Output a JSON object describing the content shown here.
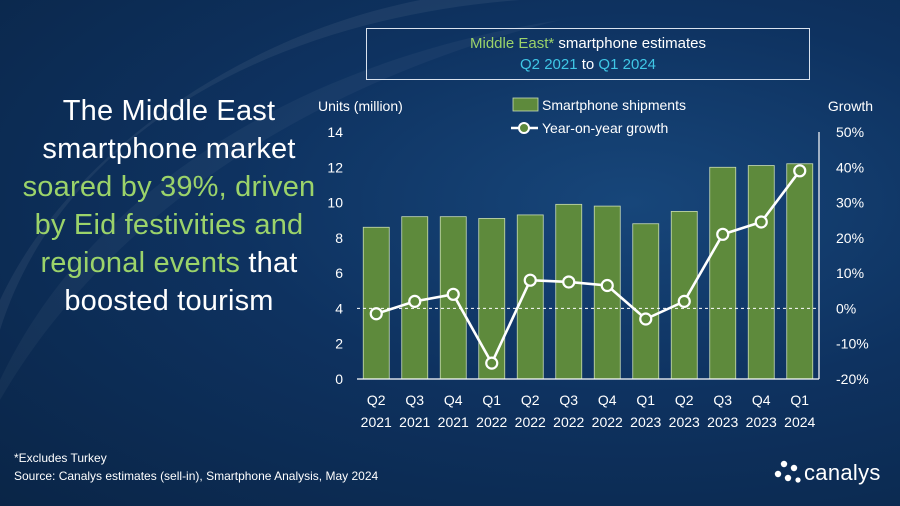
{
  "title": {
    "line1_green": "Middle East*",
    "line1_rest": " smartphone estimates",
    "line2_start": "Q2 2021",
    "line2_mid": " to ",
    "line2_end": "Q1 2024"
  },
  "headline": {
    "part1": "The Middle East smartphone market ",
    "part2_green": "soared by 39%, driven by Eid festivities and regional events",
    "part3": " that boosted tourism"
  },
  "footnote": "*Excludes Turkey",
  "source": "Source: Canalys estimates (sell-in), Smartphone Analysis, May 2024",
  "logo_text": "canalys",
  "colors": {
    "bar": "#5e8a3c",
    "bar_border": "#c9dcb4",
    "line": "#ffffff",
    "marker_fill": "#5e8a3c",
    "accent_green": "#9bd36a",
    "accent_cyan": "#3fc7e6"
  },
  "chart_data": {
    "type": "bar",
    "categories": [
      [
        "Q2",
        "2021"
      ],
      [
        "Q3",
        "2021"
      ],
      [
        "Q4",
        "2021"
      ],
      [
        "Q1",
        "2022"
      ],
      [
        "Q2",
        "2022"
      ],
      [
        "Q3",
        "2022"
      ],
      [
        "Q4",
        "2022"
      ],
      [
        "Q1",
        "2023"
      ],
      [
        "Q2",
        "2023"
      ],
      [
        "Q3",
        "2023"
      ],
      [
        "Q4",
        "2023"
      ],
      [
        "Q1",
        "2024"
      ]
    ],
    "series": [
      {
        "name": "Smartphone shipments",
        "type": "bar",
        "axis": "left",
        "values": [
          8.6,
          9.2,
          9.2,
          9.1,
          9.3,
          9.9,
          9.8,
          8.8,
          9.5,
          12.0,
          12.1,
          12.2
        ]
      },
      {
        "name": "Year-on-year growth",
        "type": "line",
        "axis": "right",
        "values": [
          -1.5,
          2.0,
          4.0,
          -15.5,
          8.0,
          7.5,
          6.5,
          -3.0,
          2.0,
          21.0,
          24.5,
          39.0
        ]
      }
    ],
    "ylabel": "Units (million)",
    "y2label": "Growth",
    "ylim": [
      0,
      14
    ],
    "yticks": [
      0,
      2,
      4,
      6,
      8,
      10,
      12,
      14
    ],
    "y2lim": [
      -20,
      50
    ],
    "y2ticks": [
      "-20%",
      "-10%",
      "0%",
      "10%",
      "20%",
      "30%",
      "40%",
      "50%"
    ],
    "zero_line": "dashed",
    "grid": false,
    "legend": "top"
  }
}
